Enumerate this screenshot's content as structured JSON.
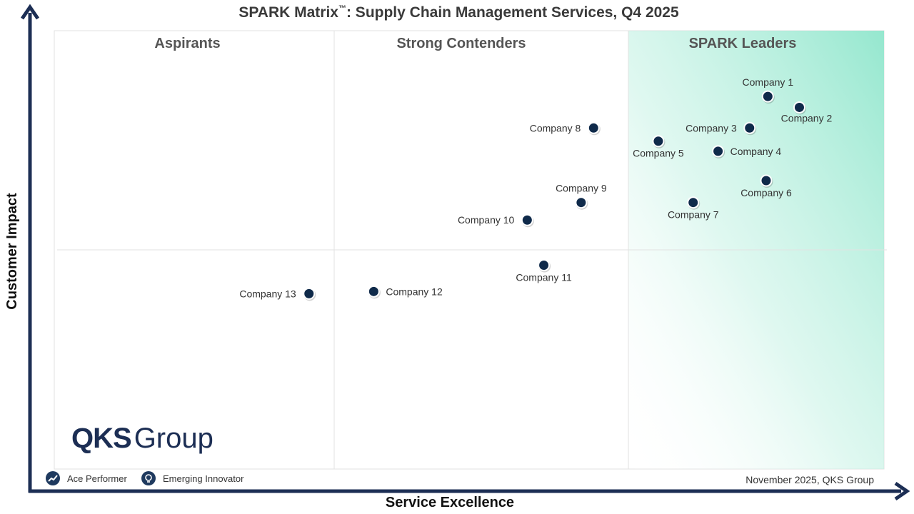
{
  "title_main": "SPARK Matrix",
  "title_tm": "™",
  "title_rest": ": Supply Chain Management Services, Q4 2025",
  "quadrants": {
    "aspirants": "Aspirants",
    "strong": "Strong Contenders",
    "leaders": "SPARK Leaders"
  },
  "legend": {
    "ace": "Ace Performer",
    "emerging": "Emerging Innovator"
  },
  "footnote": "November 2025, QKS Group",
  "logo": {
    "bold": "QKS",
    "light": "Group"
  },
  "colors": {
    "marker": "#0f2a4a",
    "axis": "#1c2e54",
    "leader_gradient": "#8fe6cc"
  },
  "chart_data": {
    "type": "scatter",
    "xlabel": "Service Excellence",
    "ylabel": "Customer Impact",
    "xlim": [
      0,
      100
    ],
    "ylim": [
      0,
      100
    ],
    "points": [
      {
        "name": "Company 1",
        "x": 86.0,
        "y": 85.0,
        "label_pos": "above"
      },
      {
        "name": "Company 2",
        "x": 89.8,
        "y": 82.5,
        "label_pos": "below-right"
      },
      {
        "name": "Company 3",
        "x": 83.8,
        "y": 77.8,
        "label_pos": "left"
      },
      {
        "name": "Company 4",
        "x": 80.0,
        "y": 72.5,
        "label_pos": "right"
      },
      {
        "name": "Company 5",
        "x": 72.8,
        "y": 74.8,
        "label_pos": "below"
      },
      {
        "name": "Company 6",
        "x": 85.8,
        "y": 65.8,
        "label_pos": "below"
      },
      {
        "name": "Company 7",
        "x": 77.0,
        "y": 60.8,
        "label_pos": "below"
      },
      {
        "name": "Company 8",
        "x": 65.0,
        "y": 77.8,
        "label_pos": "left"
      },
      {
        "name": "Company 9",
        "x": 63.5,
        "y": 60.8,
        "label_pos": "above"
      },
      {
        "name": "Company 10",
        "x": 57.0,
        "y": 56.8,
        "label_pos": "left"
      },
      {
        "name": "Company 11",
        "x": 59.0,
        "y": 46.5,
        "label_pos": "below"
      },
      {
        "name": "Company 12",
        "x": 38.5,
        "y": 40.5,
        "label_pos": "right"
      },
      {
        "name": "Company 13",
        "x": 30.7,
        "y": 40.0,
        "label_pos": "left"
      }
    ]
  }
}
